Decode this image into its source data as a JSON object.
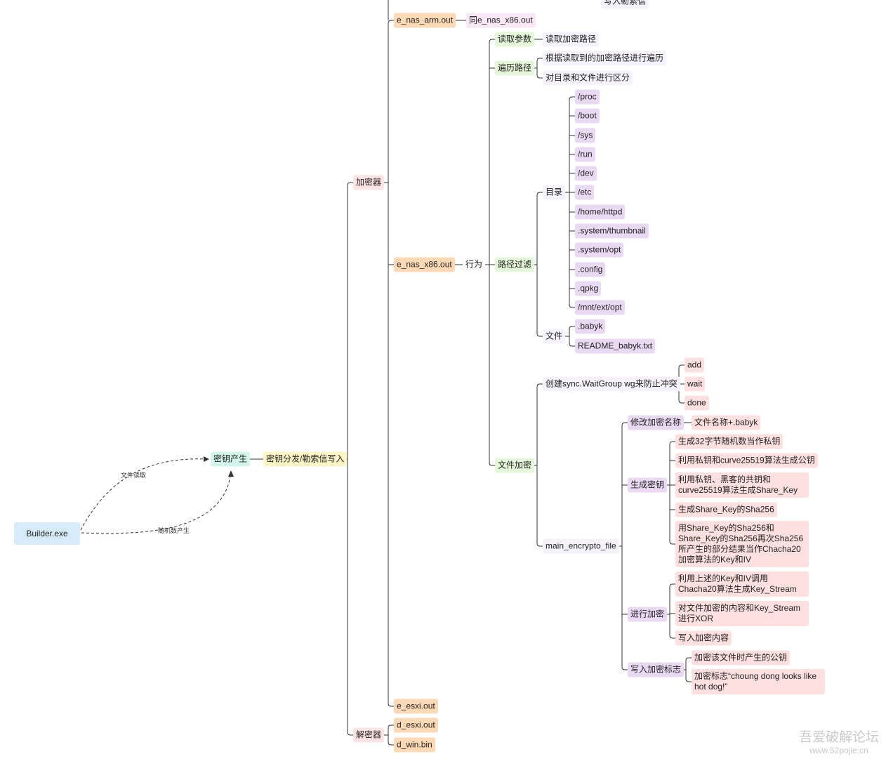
{
  "partial_top": "写入勒索信",
  "builder": "Builder.exe",
  "edge_labels": [
    "文件读取",
    "随机数产生"
  ],
  "watermark": {
    "title": "吾爱破解论坛",
    "url": "www.52pojie.cn"
  },
  "tree": {
    "label": "密钥产生",
    "children": [
      {
        "label": "密钥分发/勒索信写入",
        "children": [
          {
            "label": "加密器",
            "children": [
              {
                "label": "e_nas_arm.out",
                "children": [
                  {
                    "label": "同e_nas_x86.out"
                  }
                ]
              },
              {
                "label": "e_nas_x86.out",
                "children": [
                  {
                    "label": "行为",
                    "children": [
                      {
                        "label": "读取参数",
                        "children": [
                          {
                            "label": "读取加密路径"
                          }
                        ]
                      },
                      {
                        "label": "遍历路径",
                        "children": [
                          {
                            "label": "根据读取到的加密路径进行遍历"
                          },
                          {
                            "label": "对目录和文件进行区分"
                          }
                        ]
                      },
                      {
                        "label": "路径过滤",
                        "children": [
                          {
                            "label": "目录",
                            "children": [
                              {
                                "label": "/proc"
                              },
                              {
                                "label": "/boot"
                              },
                              {
                                "label": "/sys"
                              },
                              {
                                "label": "/run"
                              },
                              {
                                "label": "/dev"
                              },
                              {
                                "label": "/etc"
                              },
                              {
                                "label": "/home/httpd"
                              },
                              {
                                "label": ".system/thumbnail"
                              },
                              {
                                "label": ".system/opt"
                              },
                              {
                                "label": ".config"
                              },
                              {
                                "label": ".qpkg"
                              },
                              {
                                "label": "/mnt/ext/opt"
                              }
                            ]
                          },
                          {
                            "label": "文件",
                            "children": [
                              {
                                "label": ".babyk"
                              },
                              {
                                "label": "README_babyk.txt"
                              }
                            ]
                          }
                        ]
                      },
                      {
                        "label": "文件加密",
                        "children": [
                          {
                            "label": "创建sync.WaitGroup wg来防止冲突",
                            "children": [
                              {
                                "label": "add"
                              },
                              {
                                "label": "wait"
                              },
                              {
                                "label": "done"
                              }
                            ]
                          },
                          {
                            "label": "main_encrypto_file",
                            "children": [
                              {
                                "label": "修改加密名称",
                                "children": [
                                  {
                                    "label": "文件名称+.babyk"
                                  }
                                ]
                              },
                              {
                                "label": "生成密钥",
                                "children": [
                                  {
                                    "label": "生成32字节随机数当作私钥"
                                  },
                                  {
                                    "label": "利用私钥和curve25519算法生成公钥"
                                  },
                                  {
                                    "label": "利用私钥、黑客的共钥和curve25519算法生成Share_Key"
                                  },
                                  {
                                    "label": "生成Share_Key的Sha256"
                                  },
                                  {
                                    "label": "用Share_Key的Sha256和Share_Key的Sha256再次Sha256所产生的部分结果当作Chacha20加密算法的Key和IV"
                                  }
                                ]
                              },
                              {
                                "label": "进行加密",
                                "children": [
                                  {
                                    "label": "利用上述的Key和IV调用Chacha20算法生成Key_Stream"
                                  },
                                  {
                                    "label": "对文件加密的内容和Key_Stream进行XOR"
                                  },
                                  {
                                    "label": "写入加密内容"
                                  }
                                ]
                              },
                              {
                                "label": "写入加密标志",
                                "children": [
                                  {
                                    "label": "加密该文件时产生的公钥"
                                  },
                                  {
                                    "label": "加密标志“choung dong looks like hot dog!”"
                                  }
                                ]
                              }
                            ]
                          }
                        ]
                      }
                    ]
                  }
                ]
              },
              {
                "label": "e_esxi.out"
              }
            ]
          },
          {
            "label": "解密器",
            "children": [
              {
                "label": "d_esxi.out"
              },
              {
                "label": "d_win.bin"
              }
            ]
          }
        ]
      }
    ]
  }
}
